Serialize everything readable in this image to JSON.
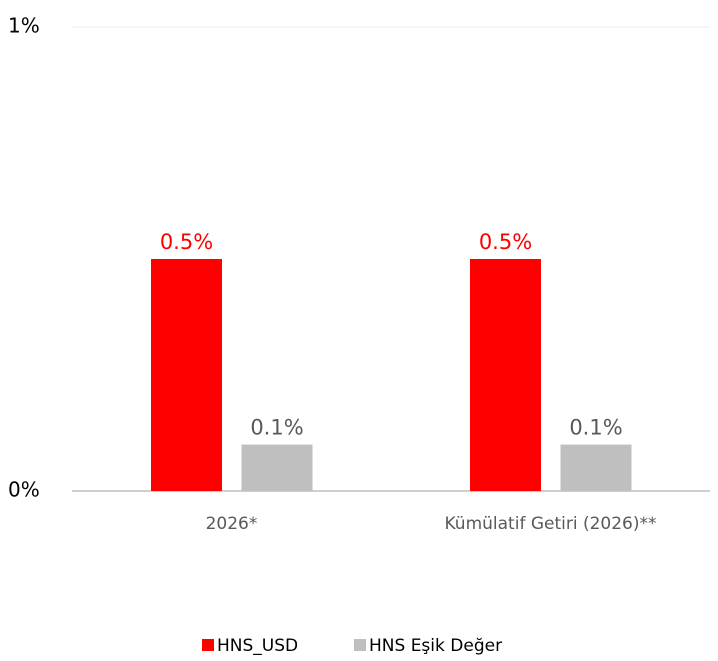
{
  "chart_data": {
    "type": "bar",
    "categories": [
      "2026*",
      "Kümülatif Getiri (2026)**"
    ],
    "series": [
      {
        "name": "HNS_USD",
        "color": "#ff0000",
        "values": [
          0.5,
          0.5
        ],
        "value_labels": [
          "0.5%",
          "0.5%"
        ]
      },
      {
        "name": "HNS Eşik Değer",
        "color": "#bfbfbf",
        "values": [
          0.1,
          0.1
        ],
        "value_labels": [
          "0.1%",
          "0.1%"
        ]
      }
    ],
    "ylim": [
      0,
      1
    ],
    "yticks": [
      {
        "value": 0,
        "label": "0%"
      },
      {
        "value": 1,
        "label": "1%"
      }
    ],
    "grid": true,
    "legend": "bottom"
  }
}
